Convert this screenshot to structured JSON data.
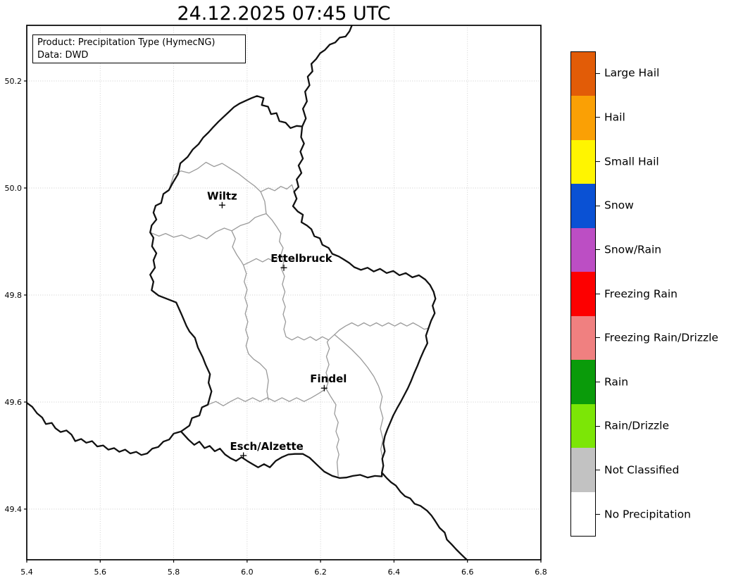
{
  "title": "24.12.2025 07:45 UTC",
  "info_box": {
    "product_line": "Product: Precipitation Type (HymecNG)",
    "data_line": "Data: DWD"
  },
  "axes": {
    "x_ticks": [
      "5.4",
      "5.6",
      "5.8",
      "6.0",
      "6.2",
      "6.4",
      "6.6",
      "6.8"
    ],
    "y_ticks": [
      "50.2",
      "50.0",
      "49.8",
      "49.6",
      "49.4"
    ],
    "lon_range": [
      5.4,
      6.8
    ],
    "lat_range": [
      49.305,
      50.304
    ]
  },
  "cities": [
    {
      "label": "Wiltz",
      "lon": 5.932,
      "lat": 49.968,
      "label_dx": 0
    },
    {
      "label": "Ettelbruck",
      "lon": 6.1,
      "lat": 49.851,
      "label_dx": 25
    },
    {
      "label": "Findel",
      "lon": 6.21,
      "lat": 49.626,
      "label_dx": 6
    },
    {
      "label": "Esch/Alzette",
      "lon": 5.99,
      "lat": 49.5,
      "label_dx": 33
    }
  ],
  "legend": {
    "entries": [
      {
        "label": "Large Hail",
        "color": "#E25C07"
      },
      {
        "label": "Hail",
        "color": "#FAA005"
      },
      {
        "label": "Small Hail",
        "color": "#FFF500"
      },
      {
        "label": "Snow",
        "color": "#0A51D4"
      },
      {
        "label": "Snow/Rain",
        "color": "#BC4EC4"
      },
      {
        "label": "Freezing Rain",
        "color": "#FD0000"
      },
      {
        "label": "Freezing Rain/Drizzle",
        "color": "#F08080"
      },
      {
        "label": "Rain",
        "color": "#0A9B0A"
      },
      {
        "label": "Rain/Drizzle",
        "color": "#7CE606"
      },
      {
        "label": "Not Classified",
        "color": "#C2C2C2"
      },
      {
        "label": "No Precipitation",
        "color": "#FFFFFF"
      }
    ]
  }
}
